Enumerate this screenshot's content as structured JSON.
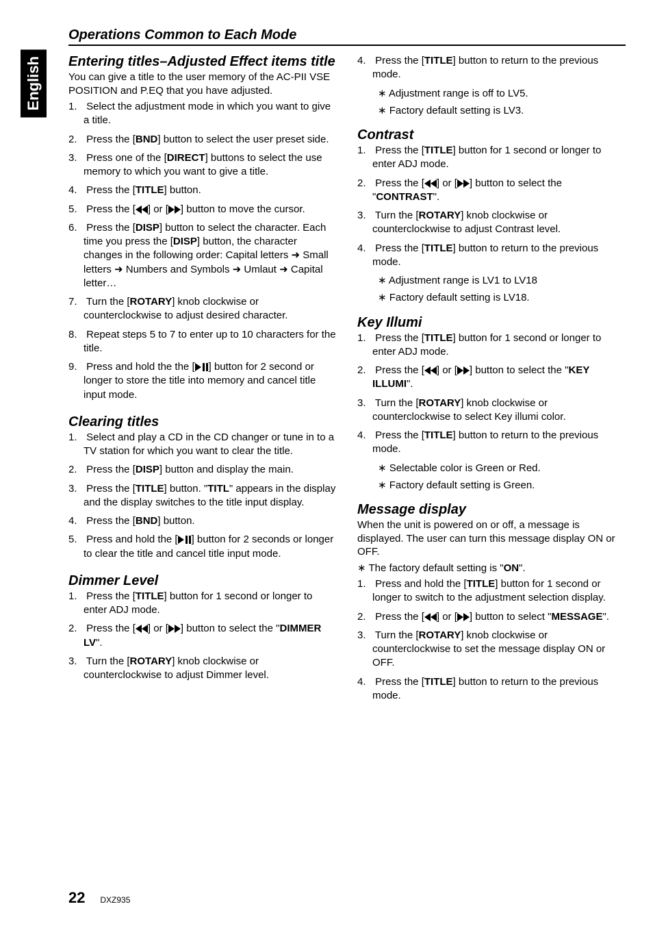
{
  "lang_tab": "English",
  "header": "Operations Common to Each Mode",
  "page_num": "22",
  "model": "DXZ935",
  "left": {
    "sec1_title": "Entering titles–Adjusted Effect items title",
    "sec1_intro": "You can give a title to the user memory of the AC-PII VSE POSITION and P.EQ that you have adjusted.",
    "sec1_steps": [
      "Select the adjustment mode in which you want to give a title.",
      "Press the [__BND__] button to select the user preset side.",
      "Press one of the [__DIRECT__] buttons to select the use memory to which you want to give a title.",
      "Press the [__TITLE__] button.",
      "Press the [__REW__] or [__FFW__] button to move the cursor.",
      "Press the [__DISP__] button to select the character. Each time you press the [__DISP__] button, the character changes in the following order: Capital letters __ARR__ Small letters __ARR__ Numbers and Symbols __ARR__ Umlaut __ARR__ Capital letter…",
      "Turn the [__ROTARY__] knob clockwise or counterclockwise to adjust desired character.",
      "Repeat steps 5 to 7 to enter up to 10 characters for the title.",
      "Press and hold the the [__PLAY__] button for 2 second or longer to store the title into memory and cancel title input mode."
    ],
    "sec2_title": "Clearing titles",
    "sec2_steps": [
      "Select and play a CD in the CD changer or tune in to a TV station for which you want to clear the title.",
      "Press the [__DISP__] button and display the main.",
      "Press the [__TITLE__] button. \"__TITL__\" appears in the display and the display switches to the title input display.",
      "Press the [__BND__] button.",
      "Press and hold the [__PLAY__] button for 2 seconds or longer to clear the title and cancel title input mode."
    ],
    "sec3_title": "Dimmer Level",
    "sec3_steps": [
      "Press the [__TITLE__] button for 1 second or longer to enter ADJ mode.",
      "Press the [__REW__] or [__FFW__] button to select the \"__DIMMER LV__\".",
      "Turn the [__ROTARY__] knob clockwise or counterclockwise to adjust Dimmer level."
    ]
  },
  "right": {
    "sec3_cont": [
      "Press the [__TITLE__] button to return to the previous mode."
    ],
    "sec3_notes": [
      "Adjustment range is off to LV5.",
      "Factory default setting is LV3."
    ],
    "sec4_title": "Contrast",
    "sec4_steps": [
      "Press the [__TITLE__] button for 1 second  or longer to enter ADJ mode.",
      "Press the [__REW__] or [__FFW__] button to select the \"__CONTRAST__\".",
      "Turn the [__ROTARY__] knob clockwise or counterclockwise to adjust Contrast level.",
      "Press the [__TITLE__] button to return to the previous mode."
    ],
    "sec4_notes": [
      "Adjustment range is LV1 to LV18",
      "Factory default setting is LV18."
    ],
    "sec5_title": "Key Illumi",
    "sec5_steps": [
      "Press the [__TITLE__] button for 1 second  or longer to enter ADJ mode.",
      "Press the [__REW__] or [__FFW__] button to select the \"__KEY ILLUMI__\".",
      "Turn the [__ROTARY__] knob clockwise or counterclockwise to select Key illumi color.",
      "Press the [__TITLE__] button to return to the previous mode."
    ],
    "sec5_notes": [
      "Selectable color is Green or Red.",
      "Factory default setting is Green."
    ],
    "sec6_title": "Message display",
    "sec6_intro": "When the unit is powered on or off, a message is displayed. The user can turn this message display ON or OFF.",
    "sec6_prenote": "The factory default setting is \"__ON__\".",
    "sec6_steps": [
      "Press and hold the [__TITLE__] button for 1 second or longer to switch to the adjustment selection display.",
      "Press the [__REW__] or [__FFW__] button to select \"__MESSAGE__\".",
      "Turn the [__ROTARY__] knob clockwise or counterclockwise to set the message display ON or OFF.",
      "Press the [__TITLE__] button to return to the previous mode."
    ]
  }
}
